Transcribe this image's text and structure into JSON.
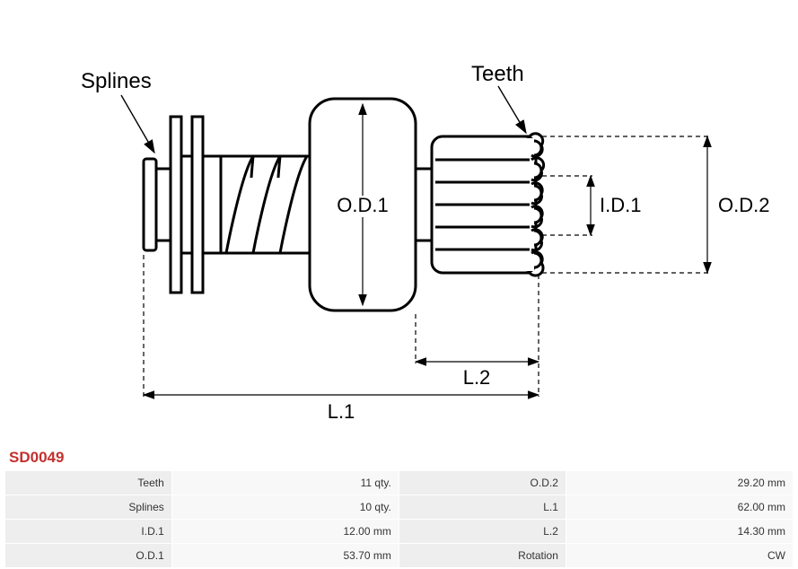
{
  "diagram": {
    "type": "engineering-schematic",
    "stroke_color": "#000000",
    "stroke_width": 3,
    "thin_stroke_width": 1.2,
    "dash_pattern": "5,4",
    "background": "#ffffff",
    "label_font_size": 22,
    "callouts": {
      "splines": "Splines",
      "teeth": "Teeth"
    },
    "dim_labels": {
      "od1": "O.D.1",
      "od2": "O.D.2",
      "id1": "I.D.1",
      "l1": "L.1",
      "l2": "L.2"
    }
  },
  "part_code": "SD0049",
  "colors": {
    "part_code": "#c2312f",
    "table_label_bg": "#eeeeee",
    "table_value_bg": "#f8f8f8",
    "text": "#333333"
  },
  "spec_table": {
    "rows": [
      {
        "l_label": "Teeth",
        "l_value": "11 qty.",
        "r_label": "O.D.2",
        "r_value": "29.20 mm"
      },
      {
        "l_label": "Splines",
        "l_value": "10 qty.",
        "r_label": "L.1",
        "r_value": "62.00 mm"
      },
      {
        "l_label": "I.D.1",
        "l_value": "12.00 mm",
        "r_label": "L.2",
        "r_value": "14.30 mm"
      },
      {
        "l_label": "O.D.1",
        "l_value": "53.70 mm",
        "r_label": "Rotation",
        "r_value": "CW"
      }
    ]
  }
}
